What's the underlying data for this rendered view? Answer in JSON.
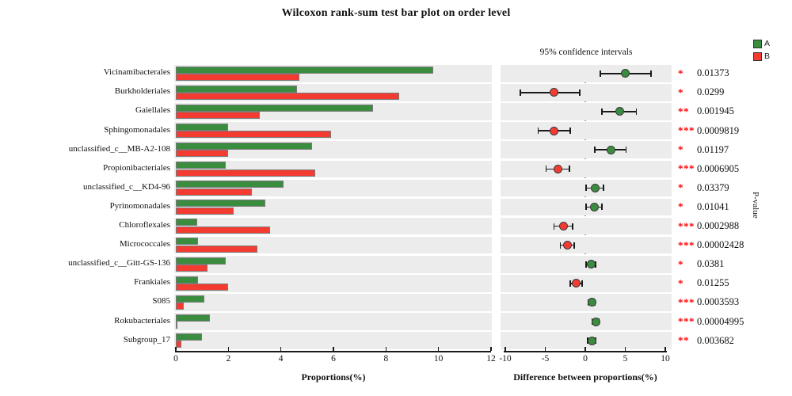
{
  "title": "Wilcoxon rank-sum test bar plot on order level",
  "colors": {
    "group_a": "#3A8C3E",
    "group_b": "#F43B32",
    "star": "#FF0000",
    "row_band": "#ECECEC",
    "bar_border": "#7A7A7A",
    "axis": "#1A1A1A",
    "zero_line": "#8C8C8C"
  },
  "legend": {
    "items": [
      {
        "label": "A",
        "color": "#3A8C3E"
      },
      {
        "label": "B",
        "color": "#F43B32"
      }
    ]
  },
  "left_panel": {
    "xlabel": "Proportions(%)",
    "ticks": [
      0,
      2,
      4,
      6,
      8,
      10,
      12
    ],
    "xlim": [
      0,
      12
    ]
  },
  "right_panel": {
    "header": "95% confidence intervals",
    "xlabel": "Difference between proportions(%)",
    "ticks": [
      -10,
      -5,
      0,
      5,
      10
    ],
    "xlim": [
      -10,
      10
    ]
  },
  "pvalue_axis_label": "P-value",
  "chart_data": {
    "type": "bar",
    "title": "Wilcoxon rank-sum test bar plot on order level",
    "orientation": "horizontal",
    "categories": [
      "Vicinamibacterales",
      "Burkholderiales",
      "Gaiellales",
      "Sphingomonadales",
      "unclassified_c__MB-A2-108",
      "Propionibacteriales",
      "unclassified_c__KD4-96",
      "Pyrinomonadales",
      "Chloroflexales",
      "Micrococcales",
      "unclassified_c__Gitt-GS-136",
      "Frankiales",
      "S085",
      "Rokubacteriales",
      "Subgroup_17"
    ],
    "series": [
      {
        "name": "A",
        "color": "#3A8C3E",
        "values": [
          9.8,
          4.6,
          7.5,
          2.0,
          5.2,
          1.9,
          4.1,
          3.4,
          0.8,
          0.85,
          1.9,
          0.85,
          1.1,
          1.3,
          1.0
        ]
      },
      {
        "name": "B",
        "color": "#F43B32",
        "values": [
          4.7,
          8.5,
          3.2,
          5.9,
          2.0,
          5.3,
          2.9,
          2.2,
          3.6,
          3.1,
          1.2,
          2.0,
          0.3,
          0.05,
          0.2
        ]
      }
    ],
    "xlabel_left": "Proportions(%)",
    "xlabel_right": "Difference between proportions(%)",
    "xlim_left": [
      0,
      12
    ],
    "xlim_right": [
      -10,
      10
    ],
    "rows": [
      {
        "category": "Vicinamibacterales",
        "A": 9.8,
        "B": 4.7,
        "diff": 5.0,
        "ci_low": 1.9,
        "ci_high": 8.2,
        "stars": "*",
        "pvalue": "0.01373"
      },
      {
        "category": "Burkholderiales",
        "A": 4.6,
        "B": 8.5,
        "diff": -3.9,
        "ci_low": -8.1,
        "ci_high": -0.7,
        "stars": "*",
        "pvalue": "0.0299"
      },
      {
        "category": "Gaiellales",
        "A": 7.5,
        "B": 3.2,
        "diff": 4.3,
        "ci_low": 2.1,
        "ci_high": 6.4,
        "stars": "**",
        "pvalue": "0.001945"
      },
      {
        "category": "Sphingomonadales",
        "A": 2.0,
        "B": 5.9,
        "diff": -3.9,
        "ci_low": -5.9,
        "ci_high": -1.9,
        "stars": "***",
        "pvalue": "0.0009819"
      },
      {
        "category": "unclassified_c__MB-A2-108",
        "A": 5.2,
        "B": 2.0,
        "diff": 3.2,
        "ci_low": 1.2,
        "ci_high": 5.1,
        "stars": "*",
        "pvalue": "0.01197"
      },
      {
        "category": "Propionibacteriales",
        "A": 1.9,
        "B": 5.3,
        "diff": -3.4,
        "ci_low": -4.9,
        "ci_high": -2.0,
        "stars": "***",
        "pvalue": "0.0006905"
      },
      {
        "category": "unclassified_c__KD4-96",
        "A": 4.1,
        "B": 2.9,
        "diff": 1.2,
        "ci_low": 0.1,
        "ci_high": 2.3,
        "stars": "*",
        "pvalue": "0.03379"
      },
      {
        "category": "Pyrinomonadales",
        "A": 3.4,
        "B": 2.2,
        "diff": 1.1,
        "ci_low": 0.1,
        "ci_high": 2.1,
        "stars": "*",
        "pvalue": "0.01041"
      },
      {
        "category": "Chloroflexales",
        "A": 0.8,
        "B": 3.6,
        "diff": -2.7,
        "ci_low": -3.9,
        "ci_high": -1.6,
        "stars": "***",
        "pvalue": "0.0002988"
      },
      {
        "category": "Micrococcales",
        "A": 0.85,
        "B": 3.1,
        "diff": -2.25,
        "ci_low": -3.1,
        "ci_high": -1.4,
        "stars": "***",
        "pvalue": "0.00002428"
      },
      {
        "category": "unclassified_c__Gitt-GS-136",
        "A": 1.9,
        "B": 1.2,
        "diff": 0.7,
        "ci_low": 0.1,
        "ci_high": 1.3,
        "stars": "*",
        "pvalue": "0.0381"
      },
      {
        "category": "Frankiales",
        "A": 0.85,
        "B": 2.0,
        "diff": -1.15,
        "ci_low": -1.9,
        "ci_high": -0.4,
        "stars": "*",
        "pvalue": "0.01255"
      },
      {
        "category": "S085",
        "A": 1.1,
        "B": 0.3,
        "diff": 0.8,
        "ci_low": 0.35,
        "ci_high": 1.25,
        "stars": "***",
        "pvalue": "0.0003593"
      },
      {
        "category": "Rokubacteriales",
        "A": 1.3,
        "B": 0.05,
        "diff": 1.3,
        "ci_low": 0.85,
        "ci_high": 1.75,
        "stars": "***",
        "pvalue": "0.00004995"
      },
      {
        "category": "Subgroup_17",
        "A": 1.0,
        "B": 0.2,
        "diff": 0.8,
        "ci_low": 0.3,
        "ci_high": 1.3,
        "stars": "**",
        "pvalue": "0.003682"
      }
    ]
  }
}
